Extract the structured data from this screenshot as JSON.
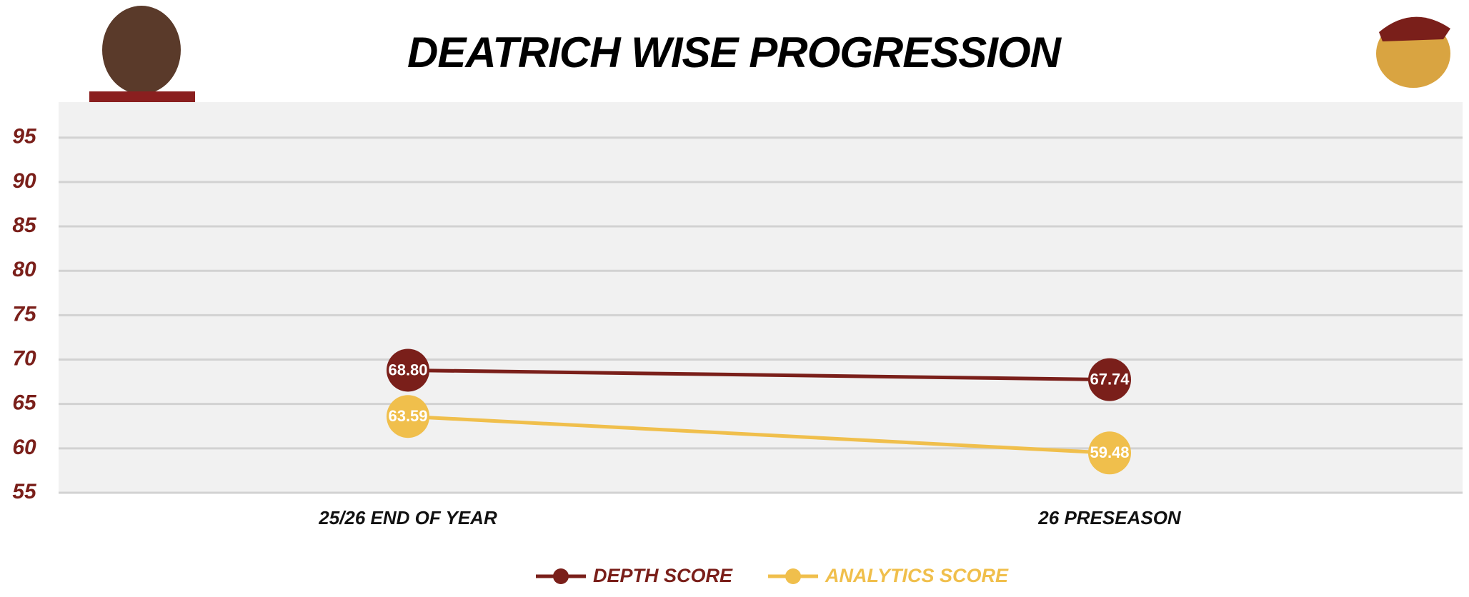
{
  "chart_data": {
    "type": "line",
    "title": "DEATRICH WISE PROGRESSION",
    "categories": [
      "25/26 END OF YEAR",
      "26 PRESEASON"
    ],
    "series": [
      {
        "name": "DEPTH SCORE",
        "color": "#7a1f1a",
        "values": [
          68.8,
          67.74
        ],
        "value_labels": [
          "68.80",
          "67.74"
        ]
      },
      {
        "name": "ANALYTICS SCORE",
        "color": "#f0bf4c",
        "values": [
          63.59,
          59.48
        ],
        "value_labels": [
          "63.59",
          "59.48"
        ]
      }
    ],
    "ylim": [
      55,
      99
    ],
    "yticks": [
      55,
      60,
      65,
      70,
      75,
      80,
      85,
      90,
      95
    ],
    "grid": true,
    "legend": "bottom"
  }
}
